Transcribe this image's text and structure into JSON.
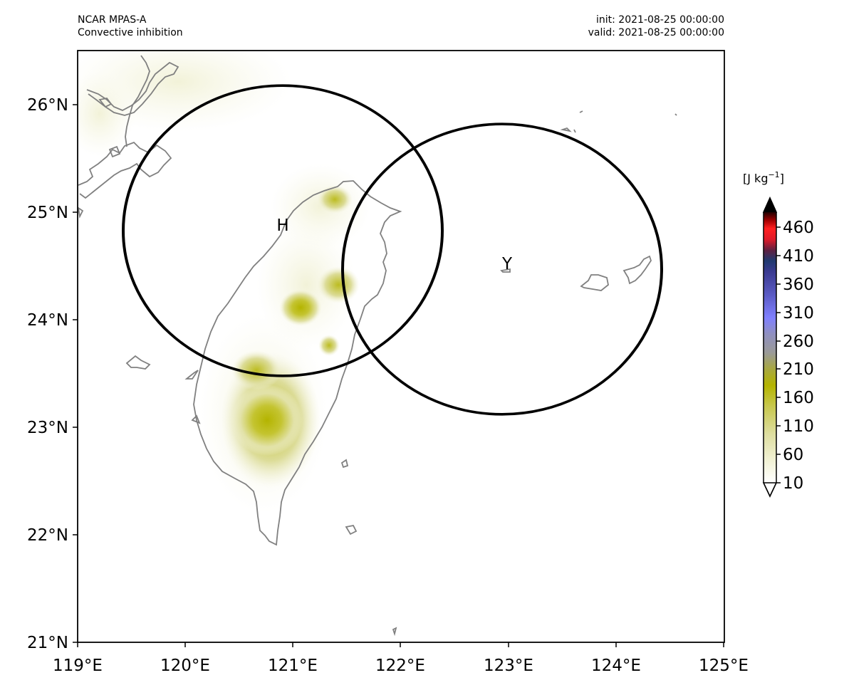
{
  "header": {
    "model": "NCAR MPAS-A",
    "field": "Convective inhibition",
    "init": "init: 2021-08-25 00:00:00",
    "valid": "valid: 2021-08-25 00:00:00"
  },
  "map": {
    "lon_range": [
      119,
      125
    ],
    "lat_range": [
      21,
      26.5
    ],
    "lon_ticks": [
      "119°E",
      "120°E",
      "121°E",
      "122°E",
      "123°E",
      "124°E",
      "125°E"
    ],
    "lat_ticks": [
      "21°N",
      "22°N",
      "23°N",
      "24°N",
      "25°N",
      "26°N"
    ],
    "coastline_color": "#808080",
    "circles": [
      {
        "label": "H",
        "center_lon": 120.9,
        "center_lat": 24.82
      },
      {
        "label": "Y",
        "center_lon": 122.95,
        "center_lat": 24.45
      }
    ]
  },
  "colorbar": {
    "units_prefix": "[J kg",
    "units_exp": "−1",
    "units_suffix": "]",
    "ticks": [
      "10",
      "60",
      "110",
      "160",
      "210",
      "260",
      "310",
      "360",
      "410",
      "460"
    ],
    "min": 10,
    "max": 500,
    "extend": "both",
    "colors": [
      "#ffffff",
      "#f0f0d0",
      "#dedea0",
      "#c8c860",
      "#b4b400",
      "#a0a060",
      "#9090a0",
      "#8080ff",
      "#5050b0",
      "#303080",
      "#203060",
      "#c02030",
      "#ff2020",
      "#a00000",
      "#000000"
    ]
  }
}
